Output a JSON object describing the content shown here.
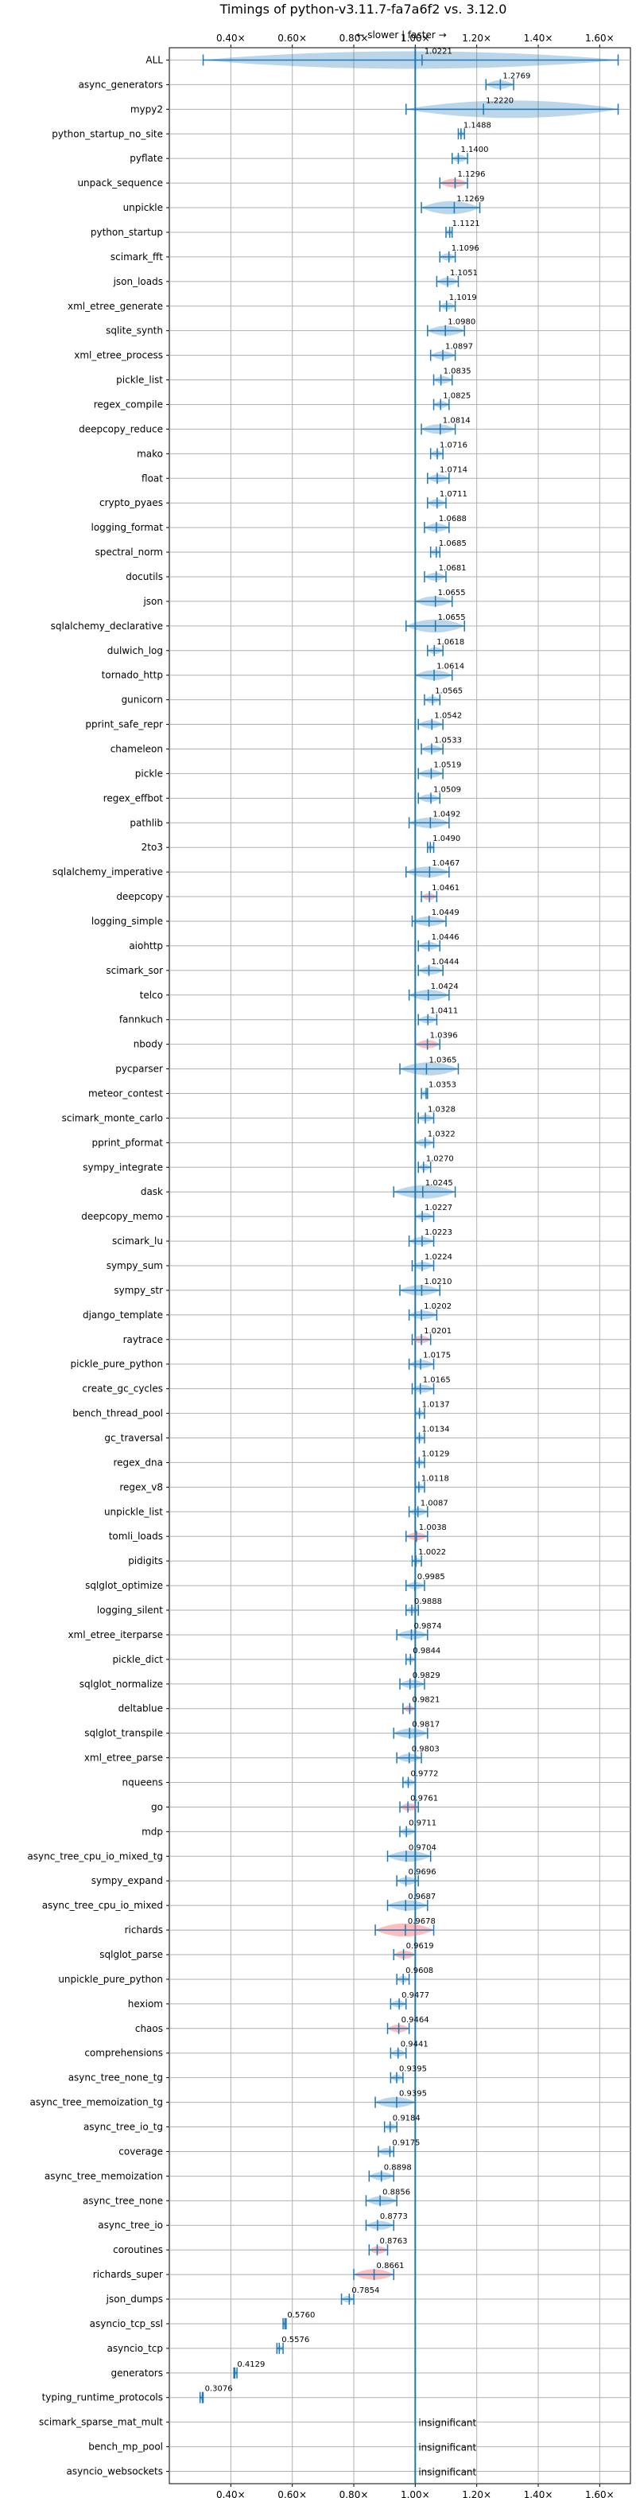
{
  "chart_data": {
    "type": "violin",
    "title": "Timings of python-v3.11.7-fa7a6f2 vs. 3.12.0",
    "direction_label": "← slower | faster →",
    "xlabel": "",
    "ylabel": "",
    "xlim": [
      0.2,
      1.7
    ],
    "x_ticks": [
      "0.40×",
      "0.60×",
      "0.80×",
      "1.00×",
      "1.20×",
      "1.40×",
      "1.60×"
    ],
    "x_tick_values": [
      0.4,
      0.6,
      0.8,
      1.0,
      1.2,
      1.4,
      1.6
    ],
    "reference_line": 1.0,
    "grid": true,
    "colors": {
      "normal": "#1f77b4",
      "flagged": "#ff6b6b"
    },
    "categories": [
      "ALL",
      "async_generators",
      "mypy2",
      "python_startup_no_site",
      "pyflate",
      "unpack_sequence",
      "unpickle",
      "python_startup",
      "scimark_fft",
      "json_loads",
      "xml_etree_generate",
      "sqlite_synth",
      "xml_etree_process",
      "pickle_list",
      "regex_compile",
      "deepcopy_reduce",
      "mako",
      "float",
      "crypto_pyaes",
      "logging_format",
      "spectral_norm",
      "docutils",
      "json",
      "sqlalchemy_declarative",
      "dulwich_log",
      "tornado_http",
      "gunicorn",
      "pprint_safe_repr",
      "chameleon",
      "pickle",
      "regex_effbot",
      "pathlib",
      "2to3",
      "sqlalchemy_imperative",
      "deepcopy",
      "logging_simple",
      "aiohttp",
      "scimark_sor",
      "telco",
      "fannkuch",
      "nbody",
      "pycparser",
      "meteor_contest",
      "scimark_monte_carlo",
      "pprint_pformat",
      "sympy_integrate",
      "dask",
      "deepcopy_memo",
      "scimark_lu",
      "sympy_sum",
      "sympy_str",
      "django_template",
      "raytrace",
      "pickle_pure_python",
      "create_gc_cycles",
      "bench_thread_pool",
      "gc_traversal",
      "regex_dna",
      "regex_v8",
      "unpickle_list",
      "tomli_loads",
      "pidigits",
      "sqlglot_optimize",
      "logging_silent",
      "xml_etree_iterparse",
      "pickle_dict",
      "sqlglot_normalize",
      "deltablue",
      "sqlglot_transpile",
      "xml_etree_parse",
      "nqueens",
      "go",
      "mdp",
      "async_tree_cpu_io_mixed_tg",
      "sympy_expand",
      "async_tree_cpu_io_mixed",
      "richards",
      "sqlglot_parse",
      "unpickle_pure_python",
      "hexiom",
      "chaos",
      "comprehensions",
      "async_tree_none_tg",
      "async_tree_memoization_tg",
      "async_tree_io_tg",
      "coverage",
      "async_tree_memoization",
      "async_tree_none",
      "async_tree_io",
      "coroutines",
      "richards_super",
      "json_dumps",
      "asyncio_tcp_ssl",
      "asyncio_tcp",
      "generators",
      "typing_runtime_protocols",
      "scimark_sparse_mat_mult",
      "bench_mp_pool",
      "asyncio_websockets"
    ],
    "values": [
      1.0221,
      1.2769,
      1.222,
      1.1488,
      1.14,
      1.1296,
      1.1269,
      1.1121,
      1.1096,
      1.1051,
      1.1019,
      1.098,
      1.0897,
      1.0835,
      1.0825,
      1.0814,
      1.0716,
      1.0714,
      1.0711,
      1.0688,
      1.0685,
      1.0681,
      1.0655,
      1.0655,
      1.0618,
      1.0614,
      1.0565,
      1.0542,
      1.0533,
      1.0519,
      1.0509,
      1.0492,
      1.049,
      1.0467,
      1.0461,
      1.0449,
      1.0446,
      1.0444,
      1.0424,
      1.0411,
      1.0396,
      1.0365,
      1.0353,
      1.0328,
      1.0322,
      1.027,
      1.0245,
      1.0227,
      1.0223,
      1.0224,
      1.021,
      1.0202,
      1.0201,
      1.0175,
      1.0165,
      1.0137,
      1.0134,
      1.0129,
      1.0118,
      1.0087,
      1.0038,
      1.0022,
      0.9985,
      0.9888,
      0.9874,
      0.9844,
      0.9829,
      0.9821,
      0.9817,
      0.9803,
      0.9772,
      0.9761,
      0.9711,
      0.9704,
      0.9696,
      0.9687,
      0.9678,
      0.9619,
      0.9608,
      0.9477,
      0.9464,
      0.9441,
      0.9395,
      0.9395,
      0.9184,
      0.9175,
      0.8898,
      0.8856,
      0.8773,
      0.8763,
      0.8661,
      0.7854,
      0.576,
      0.5576,
      0.4129,
      0.3076,
      null,
      null,
      null
    ],
    "value_labels": [
      "1.0221",
      "1.2769",
      "1.2220",
      "1.1488",
      "1.1400",
      "1.1296",
      "1.1269",
      "1.1121",
      "1.1096",
      "1.1051",
      "1.1019",
      "1.0980",
      "1.0897",
      "1.0835",
      "1.0825",
      "1.0814",
      "1.0716",
      "1.0714",
      "1.0711",
      "1.0688",
      "1.0685",
      "1.0681",
      "1.0655",
      "1.0655",
      "1.0618",
      "1.0614",
      "1.0565",
      "1.0542",
      "1.0533",
      "1.0519",
      "1.0509",
      "1.0492",
      "1.0490",
      "1.0467",
      "1.0461",
      "1.0449",
      "1.0446",
      "1.0444",
      "1.0424",
      "1.0411",
      "1.0396",
      "1.0365",
      "1.0353",
      "1.0328",
      "1.0322",
      "1.0270",
      "1.0245",
      "1.0227",
      "1.0223",
      "1.0224",
      "1.0210",
      "1.0202",
      "1.0201",
      "1.0175",
      "1.0165",
      "1.0137",
      "1.0134",
      "1.0129",
      "1.0118",
      "1.0087",
      "1.0038",
      "1.0022",
      "0.9985",
      "0.9888",
      "0.9874",
      "0.9844",
      "0.9829",
      "0.9821",
      "0.9817",
      "0.9803",
      "0.9772",
      "0.9761",
      "0.9711",
      "0.9704",
      "0.9696",
      "0.9687",
      "0.9678",
      "0.9619",
      "0.9608",
      "0.9477",
      "0.9464",
      "0.9441",
      "0.9395",
      "0.9395",
      "0.9184",
      "0.9175",
      "0.8898",
      "0.8856",
      "0.8773",
      "0.8763",
      "0.8661",
      "0.7854",
      "0.5760",
      "0.5576",
      "0.4129",
      "0.3076",
      "insignificant",
      "insignificant",
      "insignificant"
    ],
    "ranges": [
      [
        0.31,
        1.66
      ],
      [
        1.23,
        1.32
      ],
      [
        0.97,
        1.66
      ],
      [
        1.14,
        1.16
      ],
      [
        1.12,
        1.17
      ],
      [
        1.08,
        1.17
      ],
      [
        1.02,
        1.21
      ],
      [
        1.1,
        1.12
      ],
      [
        1.08,
        1.13
      ],
      [
        1.07,
        1.14
      ],
      [
        1.08,
        1.13
      ],
      [
        1.04,
        1.16
      ],
      [
        1.05,
        1.13
      ],
      [
        1.06,
        1.12
      ],
      [
        1.06,
        1.11
      ],
      [
        1.02,
        1.13
      ],
      [
        1.05,
        1.09
      ],
      [
        1.04,
        1.11
      ],
      [
        1.04,
        1.1
      ],
      [
        1.03,
        1.11
      ],
      [
        1.05,
        1.08
      ],
      [
        1.03,
        1.1
      ],
      [
        1.0,
        1.12
      ],
      [
        0.97,
        1.16
      ],
      [
        1.04,
        1.09
      ],
      [
        1.0,
        1.12
      ],
      [
        1.03,
        1.08
      ],
      [
        1.01,
        1.09
      ],
      [
        1.02,
        1.09
      ],
      [
        1.01,
        1.09
      ],
      [
        1.01,
        1.08
      ],
      [
        0.98,
        1.11
      ],
      [
        1.04,
        1.06
      ],
      [
        0.97,
        1.11
      ],
      [
        1.02,
        1.07
      ],
      [
        0.99,
        1.1
      ],
      [
        1.01,
        1.08
      ],
      [
        1.01,
        1.09
      ],
      [
        0.98,
        1.11
      ],
      [
        1.01,
        1.07
      ],
      [
        1.0,
        1.08
      ],
      [
        0.95,
        1.14
      ],
      [
        1.02,
        1.04
      ],
      [
        1.01,
        1.06
      ],
      [
        1.0,
        1.06
      ],
      [
        1.01,
        1.05
      ],
      [
        0.93,
        1.13
      ],
      [
        1.0,
        1.06
      ],
      [
        0.98,
        1.06
      ],
      [
        0.99,
        1.06
      ],
      [
        0.95,
        1.08
      ],
      [
        0.98,
        1.07
      ],
      [
        0.99,
        1.05
      ],
      [
        0.98,
        1.06
      ],
      [
        0.99,
        1.06
      ],
      [
        1.0,
        1.03
      ],
      [
        1.0,
        1.03
      ],
      [
        1.0,
        1.03
      ],
      [
        1.0,
        1.03
      ],
      [
        0.98,
        1.04
      ],
      [
        0.97,
        1.04
      ],
      [
        0.99,
        1.02
      ],
      [
        0.97,
        1.03
      ],
      [
        0.97,
        1.01
      ],
      [
        0.94,
        1.04
      ],
      [
        0.97,
        1.0
      ],
      [
        0.95,
        1.03
      ],
      [
        0.96,
        1.0
      ],
      [
        0.93,
        1.04
      ],
      [
        0.94,
        1.02
      ],
      [
        0.96,
        1.0
      ],
      [
        0.95,
        1.01
      ],
      [
        0.95,
        1.0
      ],
      [
        0.91,
        1.05
      ],
      [
        0.94,
        1.01
      ],
      [
        0.91,
        1.04
      ],
      [
        0.87,
        1.06
      ],
      [
        0.93,
        1.0
      ],
      [
        0.94,
        0.98
      ],
      [
        0.92,
        0.97
      ],
      [
        0.91,
        0.98
      ],
      [
        0.92,
        0.97
      ],
      [
        0.92,
        0.96
      ],
      [
        0.87,
        1.0
      ],
      [
        0.9,
        0.94
      ],
      [
        0.88,
        0.93
      ],
      [
        0.85,
        0.93
      ],
      [
        0.84,
        0.94
      ],
      [
        0.84,
        0.93
      ],
      [
        0.85,
        0.91
      ],
      [
        0.8,
        0.93
      ],
      [
        0.76,
        0.8
      ],
      [
        0.57,
        0.58
      ],
      [
        0.55,
        0.57
      ],
      [
        0.41,
        0.42
      ],
      [
        0.3,
        0.31
      ],
      null,
      null,
      null
    ],
    "flagged": [
      "unpack_sequence",
      "deepcopy",
      "nbody",
      "raytrace",
      "tomli_loads",
      "deltablue",
      "go",
      "richards",
      "sqlglot_parse",
      "chaos",
      "coroutines",
      "richards_super"
    ]
  }
}
